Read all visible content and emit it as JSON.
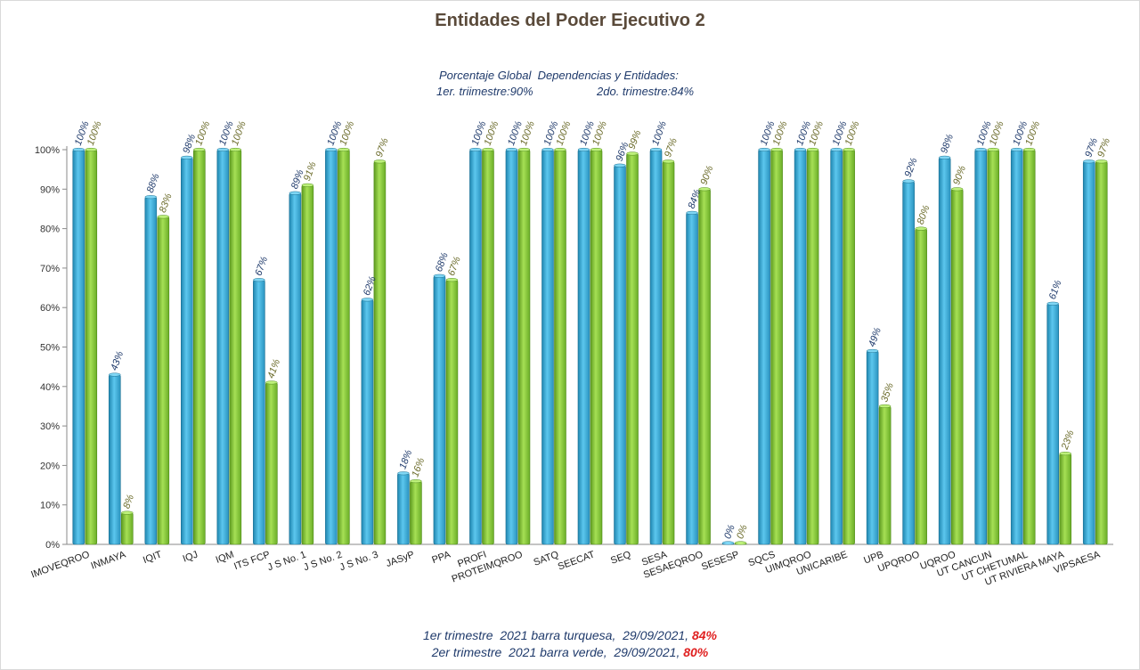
{
  "chart_data": {
    "type": "bar",
    "title": "Entidades del Poder Ejecutivo 2",
    "subtitle_line1": "Porcentaje Global  Dependencias y Entidades:",
    "subtitle_line2_a": "1er. triimestre:90%",
    "subtitle_line2_b": "2do. trimestre:84%",
    "ylim": [
      0,
      100
    ],
    "yticks": [
      "0%",
      "10%",
      "20%",
      "30%",
      "40%",
      "50%",
      "60%",
      "70%",
      "80%",
      "90%",
      "100%"
    ],
    "categories": [
      "IMOVEQROO",
      "INMAYA",
      "IQIT",
      "IQJ",
      "IQM",
      "ITS FCP",
      "J S No. 1",
      "J S No. 2",
      "J S No. 3",
      "JASyP",
      "PPA",
      "PROFI",
      "PROTEIMQROO",
      "SATQ",
      "SEECAT",
      "SEQ",
      "SESA",
      "SESAEQROO",
      "SESESP",
      "SQCS",
      "UIMQROO",
      "UNICARIBE",
      "UPB",
      "UPQROO",
      "UQROO",
      "UT CANCUN",
      "UT CHETUMAL",
      "UT RIVIERA MAYA",
      "VIPSAESA"
    ],
    "series": [
      {
        "color": "#3aaed8",
        "label_color": "#1f3a6b",
        "values": [
          100,
          43,
          88,
          98,
          100,
          67,
          89,
          100,
          62,
          18,
          68,
          100,
          100,
          100,
          100,
          96,
          100,
          84,
          0,
          100,
          100,
          100,
          49,
          92,
          98,
          100,
          100,
          61,
          97
        ],
        "labels": [
          "100%",
          "43%",
          "88%",
          "98%",
          "100%",
          "67%",
          "89%",
          "100%",
          "62%",
          "18%",
          "68%",
          "100%",
          "100%",
          "100%",
          "100%",
          "96%",
          "100%",
          "84%",
          "0%",
          "100%",
          "100%",
          "100%",
          "49%",
          "92%",
          "98%",
          "100%",
          "100%",
          "61%",
          "97%"
        ]
      },
      {
        "color": "#8ccb3a",
        "label_color": "#6b6b2a",
        "values": [
          100,
          8,
          83,
          100,
          100,
          41,
          91,
          100,
          97,
          16,
          67,
          100,
          100,
          100,
          100,
          99,
          97,
          90,
          0,
          100,
          100,
          100,
          35,
          80,
          90,
          100,
          100,
          23,
          97
        ],
        "labels": [
          "100%",
          "8%",
          "83%",
          "100%",
          "100%",
          "41%",
          "91%",
          "100%",
          "97%",
          "16%",
          "67%",
          "100%",
          "100%",
          "100%",
          "100%",
          "99%",
          "97%",
          "90%",
          "0%",
          "100%",
          "100%",
          "100%",
          "35%",
          "80%",
          "90%",
          "100%",
          "100%",
          "23%",
          "97%"
        ]
      }
    ],
    "grid": false,
    "legend": "none"
  },
  "footer": {
    "line1_text": "1er trimestre  2021 barra turquesa,  29/09/2021, ",
    "line1_pct": "84%",
    "line2_text": "2er trimestre  2021 barra verde,  29/09/2021, ",
    "line2_pct": "80%"
  }
}
